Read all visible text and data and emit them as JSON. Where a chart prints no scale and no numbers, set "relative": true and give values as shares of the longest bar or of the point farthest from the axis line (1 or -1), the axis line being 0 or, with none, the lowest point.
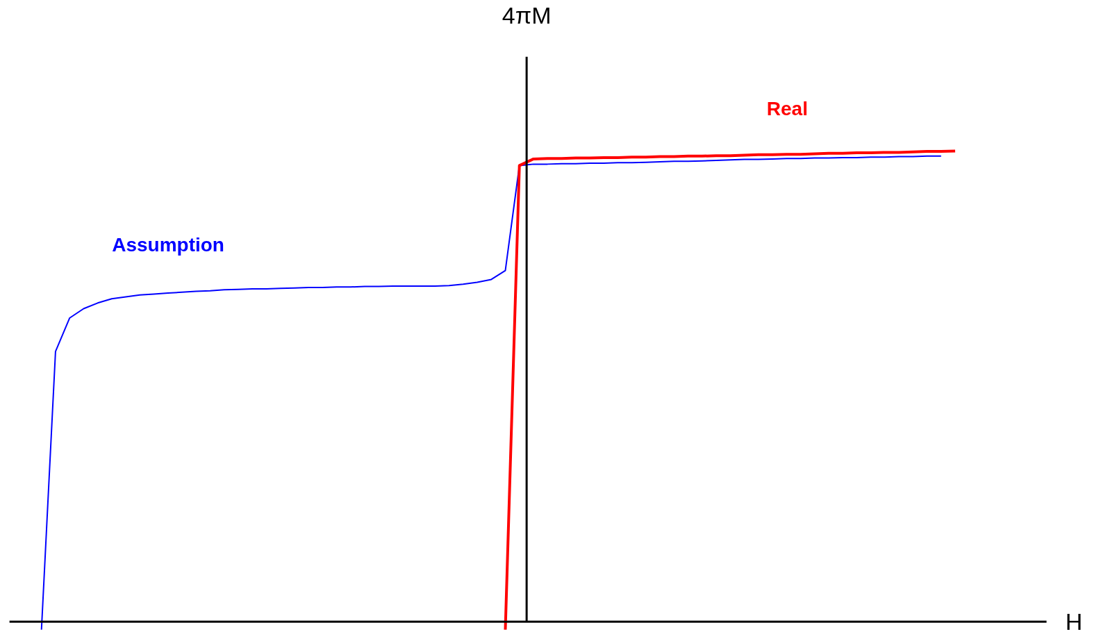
{
  "chart_data": {
    "type": "line",
    "xlabel": "H",
    "annotations": [
      "4πM"
    ],
    "relative": true,
    "grid": false,
    "marker": "none",
    "line_style": "solid",
    "categories": [
      null,
      null,
      null,
      null,
      null,
      null,
      null,
      null,
      null,
      null,
      null,
      null,
      null,
      null,
      null,
      null,
      null,
      null,
      null,
      null,
      null,
      null,
      null,
      null,
      null,
      null,
      null,
      null,
      null,
      null,
      null,
      null,
      null,
      null,
      null,
      null,
      null,
      null,
      null,
      null,
      null,
      null,
      null,
      null,
      null,
      null,
      null,
      null,
      null,
      null,
      null,
      null,
      null,
      null,
      null,
      null,
      null,
      null,
      null,
      null,
      null,
      null,
      null,
      null,
      null,
      null
    ],
    "series": [
      {
        "name": "Assumption",
        "color": "#0000ff",
        "values": [
          -0.017,
          0.574,
          0.645,
          0.665,
          0.677,
          0.686,
          0.69,
          0.694,
          0.696,
          0.698,
          0.7,
          0.702,
          0.703,
          0.705,
          0.706,
          0.707,
          0.707,
          0.708,
          0.709,
          0.71,
          0.71,
          0.711,
          0.711,
          0.712,
          0.712,
          0.713,
          0.713,
          0.713,
          0.713,
          0.714,
          0.717,
          0.721,
          0.727,
          0.746,
          0.969,
          0.972,
          0.972,
          0.973,
          0.973,
          0.974,
          0.974,
          0.975,
          0.975,
          0.976,
          0.977,
          0.978,
          0.978,
          0.979,
          0.98,
          0.981,
          0.982,
          0.982,
          0.983,
          0.984,
          0.984,
          0.985,
          0.985,
          0.986,
          0.986,
          0.987,
          0.987,
          0.988,
          0.988,
          0.989,
          0.989,
          null
        ]
      },
      {
        "name": "Real",
        "color": "#ff0000",
        "values": [
          null,
          null,
          null,
          null,
          null,
          null,
          null,
          null,
          null,
          null,
          null,
          null,
          null,
          null,
          null,
          null,
          null,
          null,
          null,
          null,
          null,
          null,
          null,
          null,
          null,
          null,
          null,
          null,
          null,
          null,
          null,
          null,
          null,
          -0.017,
          0.969,
          0.983,
          0.984,
          0.984,
          0.985,
          0.985,
          0.986,
          0.986,
          0.987,
          0.987,
          0.988,
          0.988,
          0.989,
          0.989,
          0.99,
          0.99,
          0.991,
          0.992,
          0.992,
          0.993,
          0.993,
          0.994,
          0.995,
          0.995,
          0.996,
          0.996,
          0.997,
          0.997,
          0.998,
          0.999,
          0.999,
          1.0
        ]
      }
    ]
  }
}
